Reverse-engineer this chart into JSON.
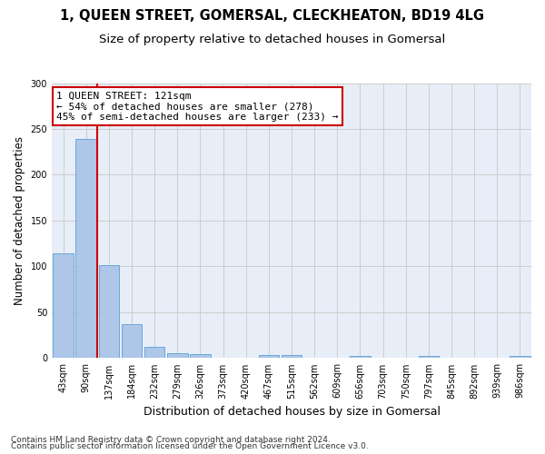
{
  "title": "1, QUEEN STREET, GOMERSAL, CLECKHEATON, BD19 4LG",
  "subtitle": "Size of property relative to detached houses in Gomersal",
  "xlabel": "Distribution of detached houses by size in Gomersal",
  "ylabel": "Number of detached properties",
  "categories": [
    "43sqm",
    "90sqm",
    "137sqm",
    "184sqm",
    "232sqm",
    "279sqm",
    "326sqm",
    "373sqm",
    "420sqm",
    "467sqm",
    "515sqm",
    "562sqm",
    "609sqm",
    "656sqm",
    "703sqm",
    "750sqm",
    "797sqm",
    "845sqm",
    "892sqm",
    "939sqm",
    "986sqm"
  ],
  "values": [
    114,
    239,
    101,
    37,
    12,
    5,
    4,
    0,
    0,
    3,
    3,
    0,
    0,
    2,
    0,
    0,
    2,
    0,
    0,
    0,
    2
  ],
  "bar_color": "#aec6e8",
  "bar_edge_color": "#5a9fd4",
  "vline_x_index": 2,
  "vline_color": "#cc0000",
  "annotation_line1": "1 QUEEN STREET: 121sqm",
  "annotation_line2": "← 54% of detached houses are smaller (278)",
  "annotation_line3": "45% of semi-detached houses are larger (233) →",
  "annotation_box_color": "white",
  "annotation_box_edge": "#cc0000",
  "ylim": [
    0,
    300
  ],
  "yticks": [
    0,
    50,
    100,
    150,
    200,
    250,
    300
  ],
  "grid_color": "#cccccc",
  "bg_color": "#e8eef8",
  "footer_line1": "Contains HM Land Registry data © Crown copyright and database right 2024.",
  "footer_line2": "Contains public sector information licensed under the Open Government Licence v3.0.",
  "title_fontsize": 10.5,
  "subtitle_fontsize": 9.5,
  "xlabel_fontsize": 9,
  "ylabel_fontsize": 8.5,
  "tick_fontsize": 7,
  "annotation_fontsize": 8,
  "footer_fontsize": 6.5
}
